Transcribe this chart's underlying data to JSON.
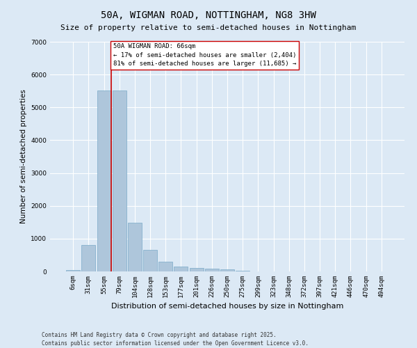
{
  "title": "50A, WIGMAN ROAD, NOTTINGHAM, NG8 3HW",
  "subtitle": "Size of property relative to semi-detached houses in Nottingham",
  "xlabel": "Distribution of semi-detached houses by size in Nottingham",
  "ylabel": "Number of semi-detached properties",
  "categories": [
    "6sqm",
    "31sqm",
    "55sqm",
    "79sqm",
    "104sqm",
    "128sqm",
    "153sqm",
    "177sqm",
    "201sqm",
    "226sqm",
    "250sqm",
    "275sqm",
    "299sqm",
    "323sqm",
    "348sqm",
    "372sqm",
    "397sqm",
    "421sqm",
    "446sqm",
    "470sqm",
    "494sqm"
  ],
  "values": [
    50,
    800,
    5520,
    5520,
    1490,
    650,
    300,
    150,
    110,
    75,
    55,
    30,
    10,
    5,
    2,
    1,
    1,
    0,
    0,
    0,
    0
  ],
  "bar_color": "#aec6db",
  "bar_edge_color": "#7aaac8",
  "background_color": "#dce9f5",
  "grid_color": "#ffffff",
  "red_line_index": 2,
  "red_line_color": "#cc0000",
  "annotation_title": "50A WIGMAN ROAD: 66sqm",
  "annotation_line1": "← 17% of semi-detached houses are smaller (2,404)",
  "annotation_line2": "81% of semi-detached houses are larger (11,685) →",
  "annotation_box_color": "#ffffff",
  "annotation_box_edge": "#cc0000",
  "footer_line1": "Contains HM Land Registry data © Crown copyright and database right 2025.",
  "footer_line2": "Contains public sector information licensed under the Open Government Licence v3.0.",
  "ylim": [
    0,
    7000
  ],
  "yticks": [
    0,
    1000,
    2000,
    3000,
    4000,
    5000,
    6000,
    7000
  ],
  "title_fontsize": 10,
  "subtitle_fontsize": 8,
  "ylabel_fontsize": 7.5,
  "xlabel_fontsize": 8,
  "tick_fontsize": 6.5,
  "annotation_fontsize": 6.5,
  "footer_fontsize": 5.5
}
